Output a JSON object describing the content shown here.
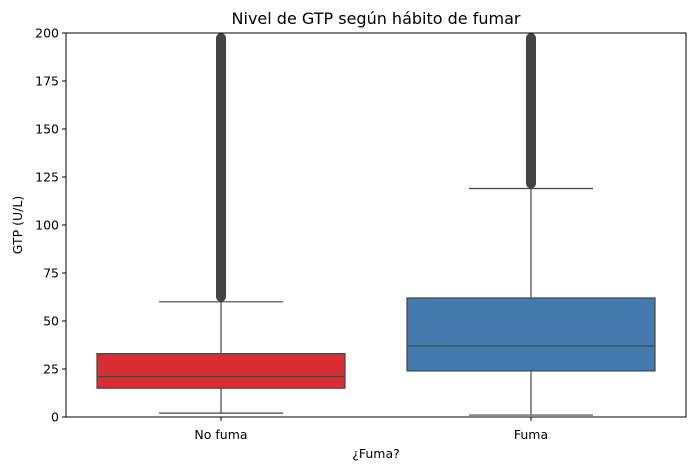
{
  "chart_data": {
    "type": "box",
    "title": "Nivel de GTP según hábito de fumar",
    "xlabel": "¿Fuma?",
    "ylabel": "GTP (U/L)",
    "ylim": [
      0,
      200
    ],
    "yticks": [
      0,
      25,
      50,
      75,
      100,
      125,
      150,
      175,
      200
    ],
    "categories": [
      "No fuma",
      "Fuma"
    ],
    "boxes": [
      {
        "name": "No fuma",
        "color": "#d62e33",
        "whisker_low": 2,
        "q1": 15,
        "median": 21,
        "q3": 33,
        "whisker_high": 60,
        "outliers_from": 60,
        "outliers_to": 200
      },
      {
        "name": "Fuma",
        "color": "#4479ad",
        "whisker_low": 1,
        "q1": 24,
        "median": 37,
        "q3": 62,
        "whisker_high": 119,
        "outliers_from": 119,
        "outliers_to": 200
      }
    ],
    "line_color": "#444444",
    "grid": false
  }
}
